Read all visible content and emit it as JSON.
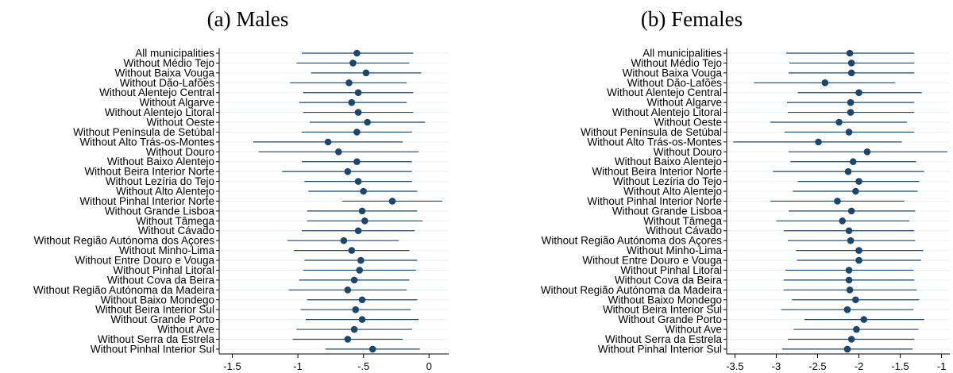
{
  "chart_data": [
    {
      "type": "scatter",
      "title": "(a) Males",
      "xlim": [
        -1.6,
        0.15
      ],
      "xticks": [
        -1.5,
        -1,
        -0.5,
        0
      ],
      "xtick_labels": [
        "-1.5",
        "-1",
        "-.5",
        "0"
      ],
      "grid": "horizontal",
      "categories": [
        "All municipalities",
        "Without Médio Tejo",
        "Without Baixa Vouga",
        "Without Dão-Lafões",
        "Without Alentejo Central",
        "Without Algarve",
        "Without Alentejo Litoral",
        "Without Oeste",
        "Without Península de Setúbal",
        "Without Alto Trás-os-Montes",
        "Without Douro",
        "Without Baixo Alentejo",
        "Without Beira Interior Norte",
        "Without Lezíria do Tejo",
        "Without Alto Alentejo",
        "Without Pinhal Interior Norte",
        "Without Grande Lisboa",
        "Without Tâmega",
        "Without Cávado",
        "Without Região Autónoma dos Açores",
        "Without Minho-Lima",
        "Without Entre Douro e Vouga",
        "Without Pinhal Litoral",
        "Without Cova da Beira",
        "Without Região Autónoma da Madeira",
        "Without Baixo Mondego",
        "Without Beira Interior Sul",
        "Without Grande Porto",
        "Without Ave",
        "Without Serra da Estrela",
        "Without Pinhal Interior Sul"
      ],
      "estimates": [
        -0.55,
        -0.58,
        -0.48,
        -0.61,
        -0.54,
        -0.59,
        -0.54,
        -0.47,
        -0.55,
        -0.77,
        -0.69,
        -0.55,
        -0.62,
        -0.54,
        -0.5,
        -0.28,
        -0.51,
        -0.49,
        -0.54,
        -0.65,
        -0.59,
        -0.52,
        -0.53,
        -0.57,
        -0.62,
        -0.51,
        -0.56,
        -0.51,
        -0.57,
        -0.62,
        -0.43
      ],
      "ci_low": [
        -0.97,
        -1.01,
        -0.9,
        -1.06,
        -0.96,
        -0.99,
        -0.96,
        -0.91,
        -0.97,
        -1.34,
        -1.3,
        -0.97,
        -1.12,
        -0.95,
        -0.92,
        -0.66,
        -0.93,
        -0.93,
        -0.97,
        -1.08,
        -1.03,
        -0.95,
        -0.96,
        -0.99,
        -1.07,
        -0.93,
        -0.98,
        -0.94,
        -1.01,
        -1.04,
        -0.79
      ],
      "ci_high": [
        -0.12,
        -0.15,
        -0.06,
        -0.17,
        -0.12,
        -0.17,
        -0.12,
        -0.03,
        -0.13,
        -0.2,
        -0.08,
        -0.13,
        -0.13,
        -0.13,
        -0.09,
        0.1,
        -0.09,
        -0.05,
        -0.11,
        -0.23,
        -0.15,
        -0.09,
        -0.1,
        -0.15,
        -0.17,
        -0.09,
        -0.14,
        -0.08,
        -0.13,
        -0.2,
        -0.07
      ]
    },
    {
      "type": "scatter",
      "title": "(b) Females",
      "xlim": [
        -3.6,
        -0.9
      ],
      "xticks": [
        -3.5,
        -3,
        -2.5,
        -2,
        -1.5,
        -1
      ],
      "xtick_labels": [
        "-3.5",
        "-3",
        "-2.5",
        "-2",
        "-1.5",
        "-1"
      ],
      "grid": "horizontal",
      "categories": [
        "All municipalities",
        "Without Médio Tejo",
        "Without Baixa Vouga",
        "Without Dão-Lafões",
        "Without Alentejo Central",
        "Without Algarve",
        "Without Alentejo Litoral",
        "Without Oeste",
        "Without Península de Setúbal",
        "Without Alto Trás-os-Montes",
        "Without Douro",
        "Without Baixo Alentejo",
        "Without Beira Interior Norte",
        "Without Lezíria do Tejo",
        "Without Alto Alentejo",
        "Without Pinhal Interior Norte",
        "Without Grande Lisboa",
        "Without Tâmega",
        "Without Cávado",
        "Without Região Autónoma dos Açores",
        "Without Minho-Lima",
        "Without Entre Douro e Vouga",
        "Without Pinhal Litoral",
        "Without Cova da Beira",
        "Without Região Autónoma da Madeira",
        "Without Baixo Mondego",
        "Without Beira Interior Sul",
        "Without Grande Porto",
        "Without Ave",
        "Without Serra da Estrela",
        "Without Pinhal Interior Sul"
      ],
      "estimates": [
        -2.11,
        -2.09,
        -2.09,
        -2.41,
        -2.0,
        -2.1,
        -2.1,
        -2.24,
        -2.12,
        -2.49,
        -1.9,
        -2.07,
        -2.13,
        -2.0,
        -2.04,
        -2.26,
        -2.09,
        -2.2,
        -2.12,
        -2.1,
        -2.0,
        -2.0,
        -2.12,
        -2.12,
        -2.11,
        -2.04,
        -2.14,
        -1.94,
        -2.03,
        -2.09,
        -2.14
      ],
      "ci_low": [
        -2.88,
        -2.84,
        -2.85,
        -3.27,
        -2.74,
        -2.87,
        -2.86,
        -3.07,
        -2.9,
        -3.52,
        -2.85,
        -2.83,
        -3.04,
        -2.74,
        -2.8,
        -3.07,
        -2.85,
        -3.0,
        -2.91,
        -2.86,
        -2.76,
        -2.75,
        -2.89,
        -2.91,
        -2.91,
        -2.81,
        -2.94,
        -2.66,
        -2.79,
        -2.86,
        -2.93
      ],
      "ci_high": [
        -1.33,
        -1.33,
        -1.33,
        -1.56,
        -1.24,
        -1.33,
        -1.33,
        -1.42,
        -1.33,
        -1.48,
        -0.93,
        -1.31,
        -1.21,
        -1.27,
        -1.29,
        -1.45,
        -1.32,
        -1.39,
        -1.33,
        -1.32,
        -1.22,
        -1.25,
        -1.34,
        -1.33,
        -1.3,
        -1.27,
        -1.34,
        -1.21,
        -1.28,
        -1.33,
        -1.35
      ]
    }
  ],
  "colors": {
    "marker": "#1a476f",
    "line": "#1a476f",
    "grid": "#eaf2f3",
    "axis": "#000000"
  }
}
